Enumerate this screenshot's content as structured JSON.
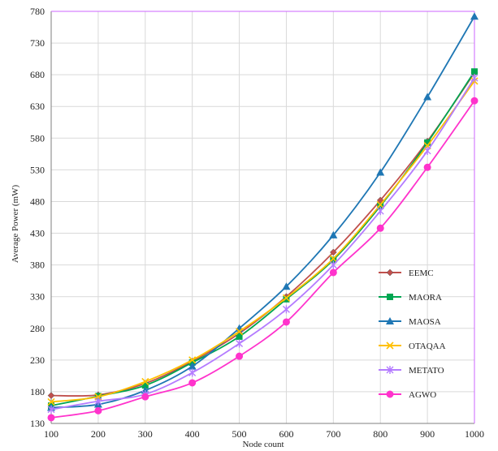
{
  "chart_data": {
    "type": "line",
    "xlabel": "Node count",
    "ylabel": "Average Power (mW)",
    "x": [
      100,
      200,
      300,
      400,
      500,
      600,
      700,
      800,
      900,
      1000
    ],
    "xlim": [
      100,
      1000
    ],
    "ylim": [
      130,
      780
    ],
    "yticks": [
      130,
      180,
      230,
      280,
      330,
      380,
      430,
      480,
      530,
      580,
      630,
      680,
      730,
      780
    ],
    "grid": true,
    "legend_position": "right",
    "series": [
      {
        "name": "EEMC",
        "color": "#c0504d",
        "marker": "diamond",
        "values": [
          174,
          175,
          193,
          228,
          272,
          330,
          400,
          482,
          575,
          683
        ]
      },
      {
        "name": "MAORA",
        "color": "#00a651",
        "marker": "square",
        "values": [
          158,
          173,
          190,
          226,
          267,
          326,
          388,
          473,
          573,
          685
        ]
      },
      {
        "name": "MAOSA",
        "color": "#1f77b4",
        "marker": "triangle",
        "values": [
          155,
          160,
          182,
          220,
          280,
          346,
          427,
          526,
          645,
          772
        ]
      },
      {
        "name": "OTAQAA",
        "color": "#ffc000",
        "marker": "x",
        "values": [
          164,
          172,
          196,
          230,
          275,
          328,
          390,
          475,
          568,
          670
        ]
      },
      {
        "name": "METATO",
        "color": "#b47cff",
        "marker": "star",
        "values": [
          152,
          165,
          176,
          210,
          256,
          310,
          380,
          465,
          560,
          675
        ]
      },
      {
        "name": "AGWO",
        "color": "#ff33cc",
        "marker": "circle",
        "values": [
          139,
          150,
          172,
          194,
          236,
          290,
          368,
          438,
          534,
          639
        ]
      }
    ]
  }
}
